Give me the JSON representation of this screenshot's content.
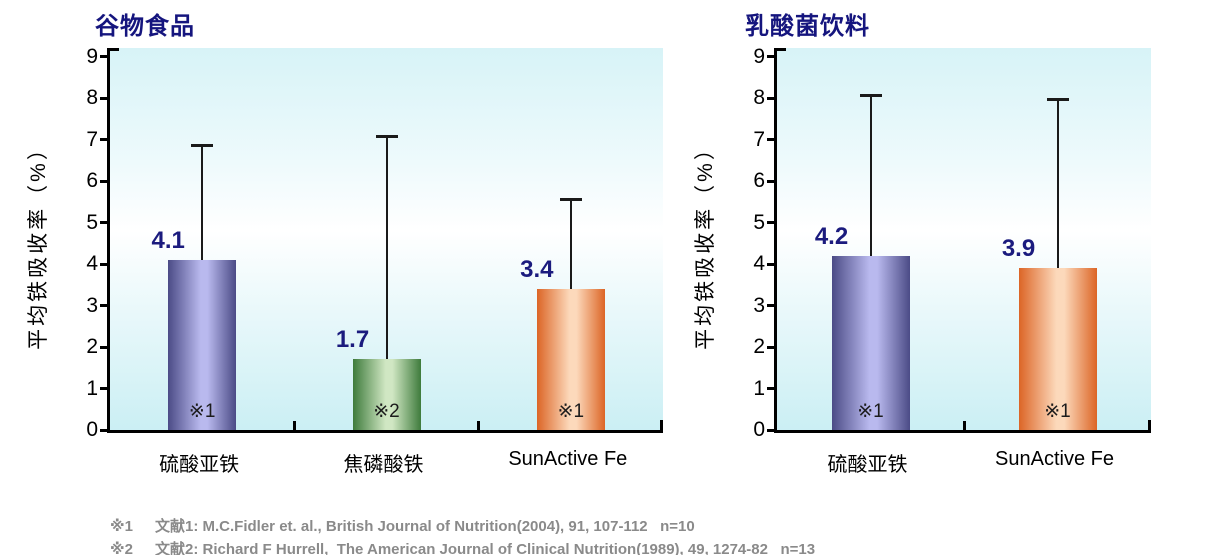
{
  "chart_data": [
    {
      "type": "bar",
      "title": "谷物食品",
      "ylabel": "平均铁吸收率（%）",
      "xlabel": "",
      "ylim": [
        0,
        9
      ],
      "yticks": [
        0,
        1,
        2,
        3,
        4,
        5,
        6,
        7,
        8,
        9
      ],
      "grid": false,
      "legend": "none",
      "categories": [
        "硫酸亚铁",
        "焦磷酸铁",
        "SunActive Fe"
      ],
      "values": [
        4.1,
        1.7,
        3.4
      ],
      "error_tops": [
        6.9,
        7.1,
        5.6
      ],
      "bar_notes": [
        "※1",
        "※2",
        "※1"
      ],
      "bar_colors": [
        {
          "edge": "#4b4b86",
          "light": "#b9b9ee"
        },
        {
          "edge": "#3e7b3c",
          "light": "#d0e7c3"
        },
        {
          "edge": "#dc6526",
          "light": "#fcd9bb"
        }
      ]
    },
    {
      "type": "bar",
      "title": "乳酸菌饮料",
      "ylabel": "平均铁吸收率（%）",
      "xlabel": "",
      "ylim": [
        0,
        9
      ],
      "yticks": [
        0,
        1,
        2,
        3,
        4,
        5,
        6,
        7,
        8,
        9
      ],
      "grid": false,
      "legend": "none",
      "categories": [
        "硫酸亚铁",
        "SunActive Fe"
      ],
      "values": [
        4.2,
        3.9
      ],
      "error_tops": [
        8.1,
        8.0
      ],
      "bar_notes": [
        "※1",
        "※1"
      ],
      "bar_colors": [
        {
          "edge": "#4b4b86",
          "light": "#b9b9ee"
        },
        {
          "edge": "#dc6526",
          "light": "#fcd9bb"
        }
      ]
    }
  ],
  "footnotes": [
    {
      "marker": "※1",
      "text": "文献1: M.C.Fidler et. al., British Journal of Nutrition(2004), 91, 107-112   n=10"
    },
    {
      "marker": "※2",
      "text": "文献2: Richard F Hurrell,  The American Journal of Clinical Nutrition(1989), 49, 1274-82   n=13"
    }
  ],
  "colors": {
    "title": "#15157e",
    "value_label": "#1b1b7e",
    "footnote": "#8a8a8a",
    "axis": "#000000",
    "plot_bg_top": "#d7f3f7",
    "plot_bg_mid": "#ffffff",
    "plot_bg_bottom": "#cbeff4"
  }
}
